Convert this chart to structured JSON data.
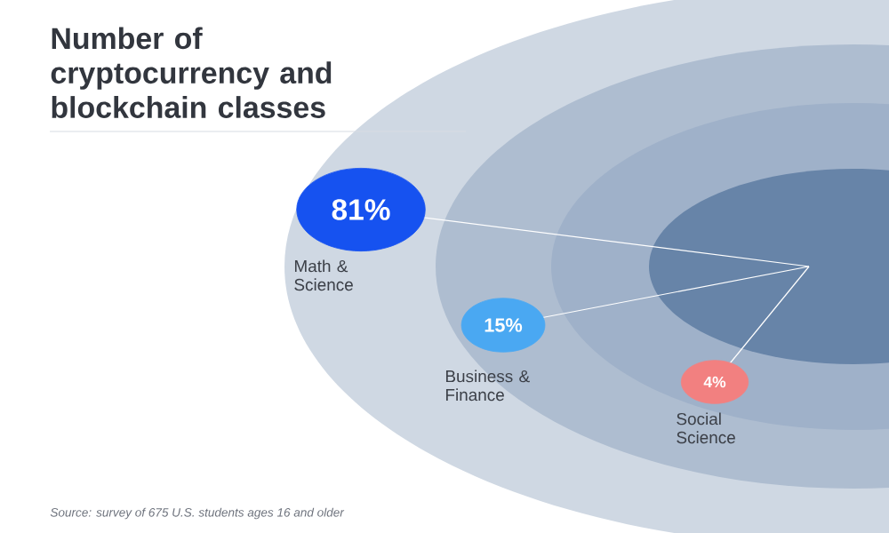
{
  "chart_data": {
    "type": "other",
    "title": "Number of cryptocurrency and blockchain classes",
    "categories": [
      "Math & Science",
      "Business & Finance",
      "Social Science"
    ],
    "values": [
      81,
      15,
      4
    ],
    "value_labels": [
      "81%",
      "15%",
      "4%"
    ],
    "colors": [
      "#1652f0",
      "#4aa8f2",
      "#f28080"
    ],
    "annotations": [
      "Source: survey of 675 U.S. students ages 16 and older"
    ]
  }
}
